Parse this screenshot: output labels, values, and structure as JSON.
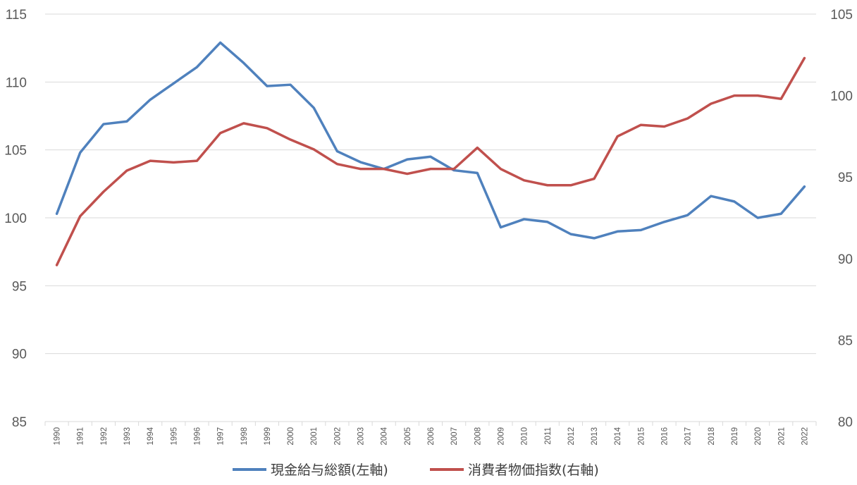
{
  "chart_data": {
    "type": "line",
    "categories": [
      "1990",
      "1991",
      "1992",
      "1993",
      "1994",
      "1995",
      "1996",
      "1997",
      "1998",
      "1999",
      "2000",
      "2001",
      "2002",
      "2003",
      "2004",
      "2005",
      "2006",
      "2007",
      "2008",
      "2009",
      "2010",
      "2011",
      "2012",
      "2013",
      "2014",
      "2015",
      "2016",
      "2017",
      "2018",
      "2019",
      "2020",
      "2021",
      "2022"
    ],
    "series": [
      {
        "name": "現金給与総額(左軸)",
        "axis": "left",
        "color": "#4f81bd",
        "values": [
          100.3,
          104.8,
          106.9,
          107.1,
          108.7,
          109.9,
          111.1,
          112.9,
          111.4,
          109.7,
          109.8,
          108.1,
          104.9,
          104.1,
          103.6,
          104.3,
          104.5,
          103.5,
          103.3,
          99.3,
          99.9,
          99.7,
          98.8,
          98.5,
          99.0,
          99.1,
          99.7,
          100.2,
          101.6,
          101.2,
          100.0,
          100.3,
          102.3
        ]
      },
      {
        "name": "消費者物価指数(右軸)",
        "axis": "right",
        "color": "#c0504d",
        "values": [
          89.6,
          92.6,
          94.1,
          95.4,
          96.0,
          95.9,
          96.0,
          97.7,
          98.3,
          98.0,
          97.3,
          96.7,
          95.8,
          95.5,
          95.5,
          95.2,
          95.5,
          95.5,
          96.8,
          95.5,
          94.8,
          94.5,
          94.5,
          94.9,
          97.5,
          98.2,
          98.1,
          98.6,
          99.5,
          100.0,
          100.0,
          99.8,
          102.3
        ]
      }
    ],
    "y_left": {
      "min": 85,
      "max": 115,
      "ticks": [
        "85",
        "90",
        "95",
        "100",
        "105",
        "110",
        "115"
      ]
    },
    "y_right": {
      "min": 80,
      "max": 105,
      "ticks": [
        "80",
        "85",
        "90",
        "95",
        "100",
        "105"
      ]
    },
    "grid": true,
    "legend_position": "bottom"
  }
}
